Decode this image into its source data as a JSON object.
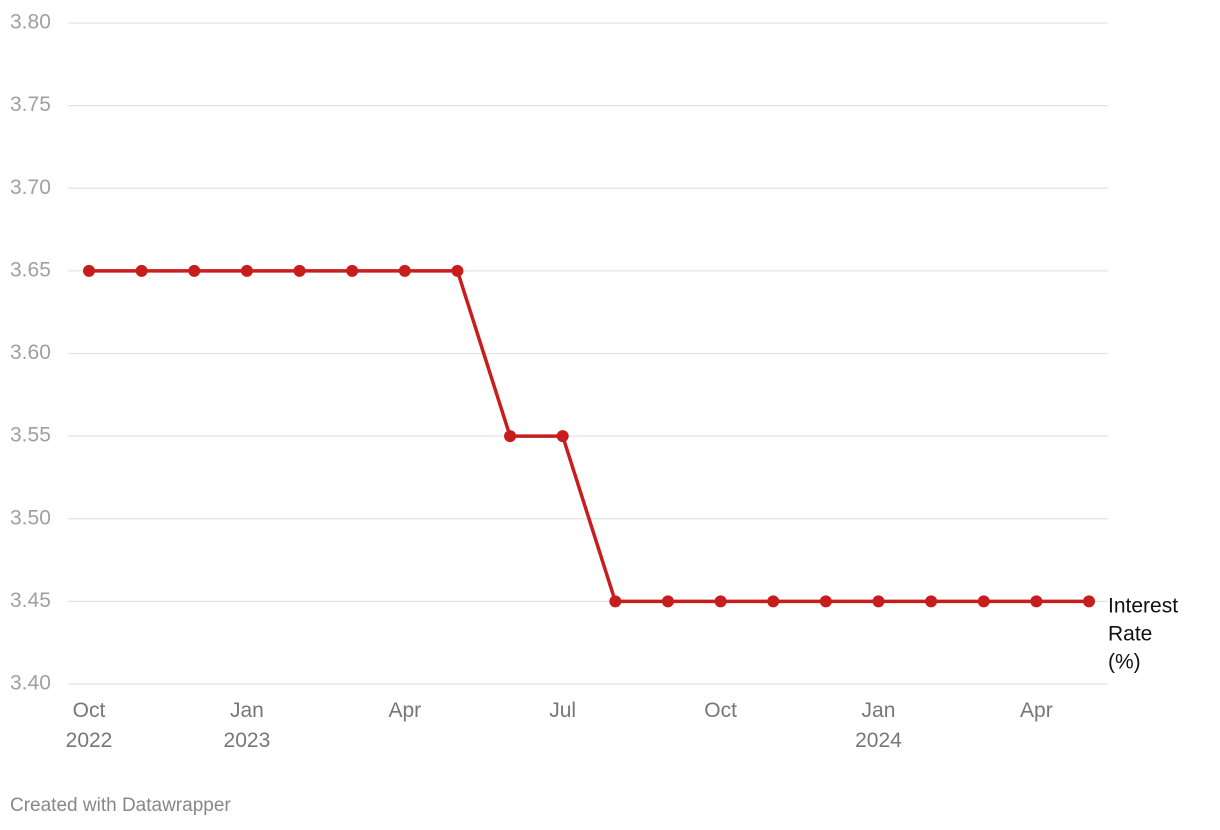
{
  "chart_data": {
    "type": "line",
    "credit": "Created with Datawrapper",
    "x": [
      "2022-10",
      "2022-11",
      "2022-12",
      "2023-01",
      "2023-02",
      "2023-03",
      "2023-04",
      "2023-05",
      "2023-06",
      "2023-07",
      "2023-08",
      "2023-09",
      "2023-10",
      "2023-11",
      "2023-12",
      "2024-01",
      "2024-02",
      "2024-03",
      "2024-04",
      "2024-05"
    ],
    "series": [
      {
        "name": "Interest Rate (%)",
        "color": "#c71e1d",
        "values": [
          3.65,
          3.65,
          3.65,
          3.65,
          3.65,
          3.65,
          3.65,
          3.65,
          3.55,
          3.55,
          3.45,
          3.45,
          3.45,
          3.45,
          3.45,
          3.45,
          3.45,
          3.45,
          3.45,
          3.45
        ]
      }
    ],
    "xticks": [
      {
        "value": "2022-10",
        "label": "Oct 2022"
      },
      {
        "value": "2023-01",
        "label": "Jan 2023"
      },
      {
        "value": "2023-04",
        "label": "Apr"
      },
      {
        "value": "2023-07",
        "label": "Jul"
      },
      {
        "value": "2023-10",
        "label": "Oct"
      },
      {
        "value": "2024-01",
        "label": "Jan 2024"
      },
      {
        "value": "2024-04",
        "label": "Apr"
      }
    ],
    "ylim": [
      3.4,
      3.8
    ],
    "yticks": [
      {
        "value": 3.4,
        "label": "3.40"
      },
      {
        "value": 3.45,
        "label": "3.45"
      },
      {
        "value": 3.5,
        "label": "3.50"
      },
      {
        "value": 3.55,
        "label": "3.55"
      },
      {
        "value": 3.6,
        "label": "3.60"
      },
      {
        "value": 3.65,
        "label": "3.65"
      },
      {
        "value": 3.7,
        "label": "3.70"
      },
      {
        "value": 3.75,
        "label": "3.75"
      },
      {
        "value": 3.8,
        "label": "3.80"
      }
    ],
    "grid": true
  }
}
